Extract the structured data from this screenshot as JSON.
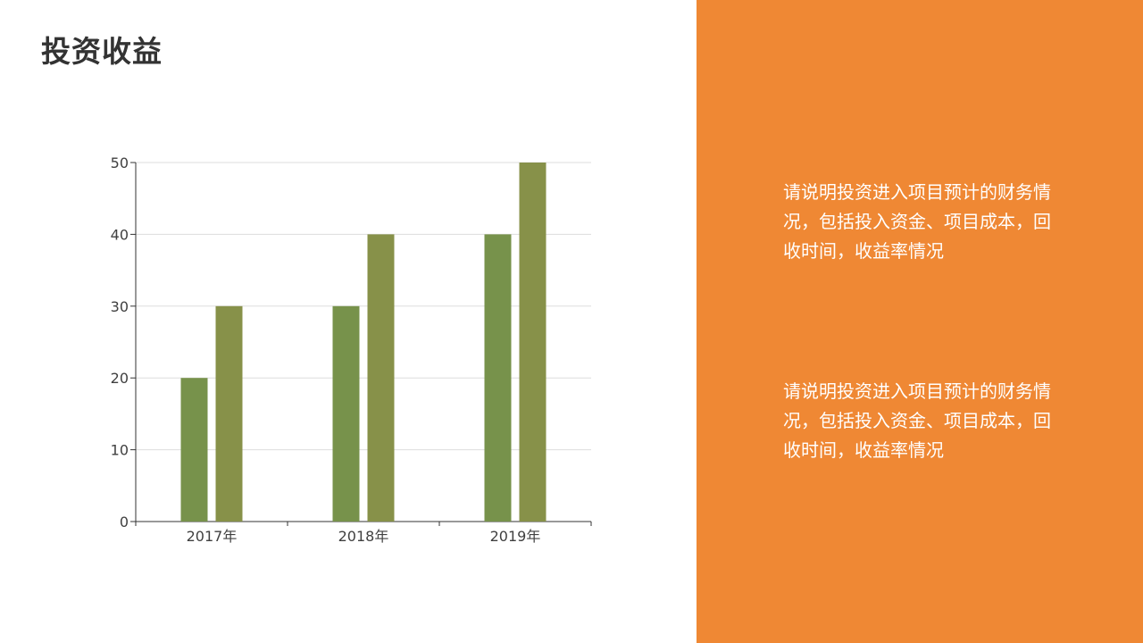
{
  "slide": {
    "title": "投资收益"
  },
  "colors": {
    "panel": "#EF8834",
    "series_1": "#77924B",
    "series_2": "#879149",
    "gridline": "#DDDDDD",
    "axis": "#333333"
  },
  "chart_data": {
    "type": "bar",
    "categories": [
      "2017年",
      "2018年",
      "2019年"
    ],
    "series": [
      {
        "values": [
          20,
          30,
          40
        ]
      },
      {
        "values": [
          30,
          40,
          50
        ]
      }
    ],
    "ylim": [
      0,
      50
    ],
    "yticks": [
      0,
      10,
      20,
      30,
      40,
      50
    ],
    "grid": true,
    "legend": "none",
    "title": "",
    "xlabel": "",
    "ylabel": ""
  },
  "panel": {
    "paragraphs": [
      "请说明投资进入项目预计的财务情况，包括投入资金、项目成本，回收时间，收益率情况",
      "请说明投资进入项目预计的财务情况，包括投入资金、项目成本，回收时间，收益率情况"
    ]
  }
}
